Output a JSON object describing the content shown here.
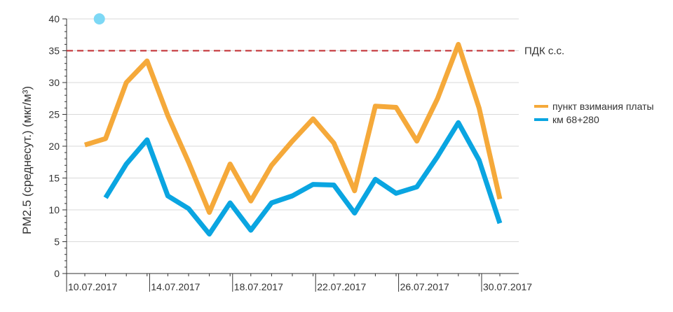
{
  "chart_data": {
    "type": "line",
    "title": "",
    "xlabel": "",
    "ylabel": "PM2.5 (среднесут.) (мкг/м³)",
    "ylim": [
      0,
      40
    ],
    "yticks": [
      0,
      5,
      10,
      15,
      20,
      25,
      30,
      35,
      40
    ],
    "grid": true,
    "legend_position": "right",
    "x": [
      "10.07.2017",
      "11.07.2017",
      "12.07.2017",
      "13.07.2017",
      "14.07.2017",
      "15.07.2017",
      "16.07.2017",
      "17.07.2017",
      "18.07.2017",
      "19.07.2017",
      "20.07.2017",
      "21.07.2017",
      "22.07.2017",
      "23.07.2017",
      "24.07.2017",
      "25.07.2017",
      "26.07.2017",
      "27.07.2017",
      "28.07.2017",
      "29.07.2017",
      "30.07.2017"
    ],
    "x_tick_labels": [
      "10.07.2017",
      "14.07.2017",
      "18.07.2017",
      "22.07.2017",
      "26.07.2017",
      "30.07.2017"
    ],
    "series": [
      {
        "name": "пункт взимания платы",
        "color": "#F5A93A",
        "values": [
          20.2,
          21.2,
          30.0,
          33.4,
          24.8,
          17.5,
          9.6,
          17.2,
          11.4,
          17.0,
          20.8,
          24.3,
          20.5,
          13.0,
          26.3,
          26.1,
          20.8,
          27.5,
          36.0,
          26.0,
          11.7
        ]
      },
      {
        "name": "км 68+280",
        "color": "#0AA5E1",
        "values": [
          null,
          11.9,
          17.2,
          21.0,
          12.2,
          10.2,
          6.2,
          11.1,
          6.8,
          11.1,
          12.2,
          14.0,
          13.9,
          9.5,
          14.8,
          12.6,
          13.6,
          18.4,
          23.7,
          17.8,
          7.9
        ]
      }
    ],
    "reference_line": {
      "label": "ПДК с.с.",
      "value": 35,
      "color": "#C0282D"
    },
    "marker": {
      "value": 40,
      "x_index": 0.7,
      "color": "#7DD8F5"
    }
  }
}
